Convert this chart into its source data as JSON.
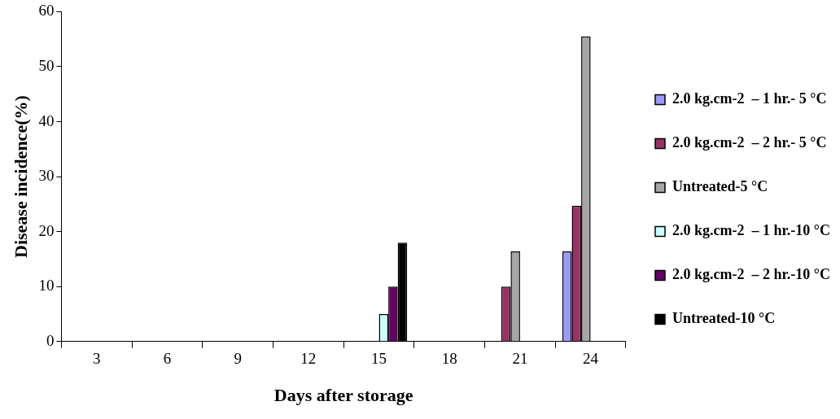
{
  "chart_data": {
    "type": "bar",
    "xlabel": "Days after storage",
    "ylabel": "Disease incidence(%)",
    "categories": [
      "3",
      "6",
      "9",
      "12",
      "15",
      "18",
      "21",
      "24"
    ],
    "ylim": [
      0,
      60
    ],
    "yticks": [
      0,
      10,
      20,
      30,
      40,
      50,
      60
    ],
    "grid": false,
    "legend": "right",
    "series": [
      {
        "name": "2.0 kg.cm-2  – 1 hr.- 5 °C",
        "color": "#9999ff",
        "values": [
          0,
          0,
          0,
          0,
          0,
          0,
          0,
          16.4
        ]
      },
      {
        "name": "2.0 kg.cm-2  – 2 hr.- 5 °C",
        "color": "#993366",
        "values": [
          0,
          0,
          0,
          0,
          0,
          0,
          10,
          24.7
        ]
      },
      {
        "name": "Untreated-5 °C",
        "color": "#a6a6a6",
        "values": [
          0,
          0,
          0,
          0,
          0,
          0,
          16.4,
          55.5
        ]
      },
      {
        "name": "2.0 kg.cm-2  – 1 hr.-10 °C",
        "color": "#ccffff",
        "values": [
          0,
          0,
          0,
          0,
          5,
          0,
          0,
          0
        ]
      },
      {
        "name": "2.0 kg.cm-2  – 2 hr.-10 °C",
        "color": "#660066",
        "values": [
          0,
          0,
          0,
          0,
          10,
          0,
          0,
          0
        ]
      },
      {
        "name": "Untreated-10 °C",
        "color": "#000000",
        "values": [
          0,
          0,
          0,
          0,
          18,
          0,
          0,
          0
        ]
      }
    ]
  }
}
